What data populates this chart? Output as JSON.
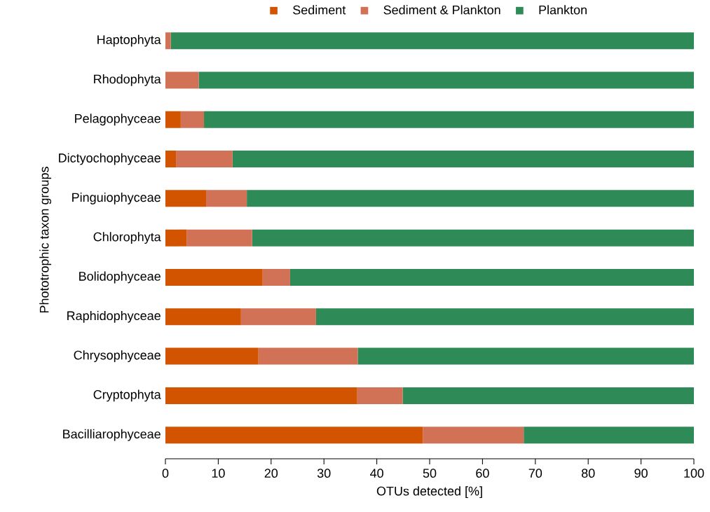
{
  "chart_data": {
    "type": "bar",
    "orientation": "horizontal",
    "stacked": true,
    "xlabel": "OTUs detected [%]",
    "ylabel": "Phototrophic taxon groups",
    "categories": [
      "Haptophyta",
      "Rhodophyta",
      "Pelagophyceae",
      "Dictyochophyceae",
      "Pinguiophyceae",
      "Chlorophyta",
      "Bolidophyceae",
      "Raphidophyceae",
      "Chrysophyceae",
      "Cryptophyta",
      "Bacilliarophyceae"
    ],
    "series": [
      {
        "name": "Sediment",
        "color": "#d35400",
        "values": [
          0,
          0,
          2.9,
          2.0,
          7.7,
          4.0,
          18.4,
          14.3,
          17.6,
          36.3,
          48.7
        ]
      },
      {
        "name": "Sediment & Plankton",
        "color": "#d17257",
        "values": [
          1,
          6.3,
          4.4,
          10.7,
          7.7,
          12.4,
          5.2,
          14.2,
          18.8,
          8.6,
          19.1
        ]
      },
      {
        "name": "Plankton",
        "color": "#2e8b57",
        "values": [
          99,
          93.7,
          92.7,
          87.3,
          84.6,
          83.6,
          76.4,
          71.5,
          63.6,
          55.1,
          32.2
        ]
      }
    ],
    "xlim": [
      0,
      100
    ],
    "xticks": [
      0,
      10,
      20,
      30,
      40,
      50,
      60,
      70,
      80,
      90,
      100
    ],
    "legend": "top",
    "grid": false
  }
}
